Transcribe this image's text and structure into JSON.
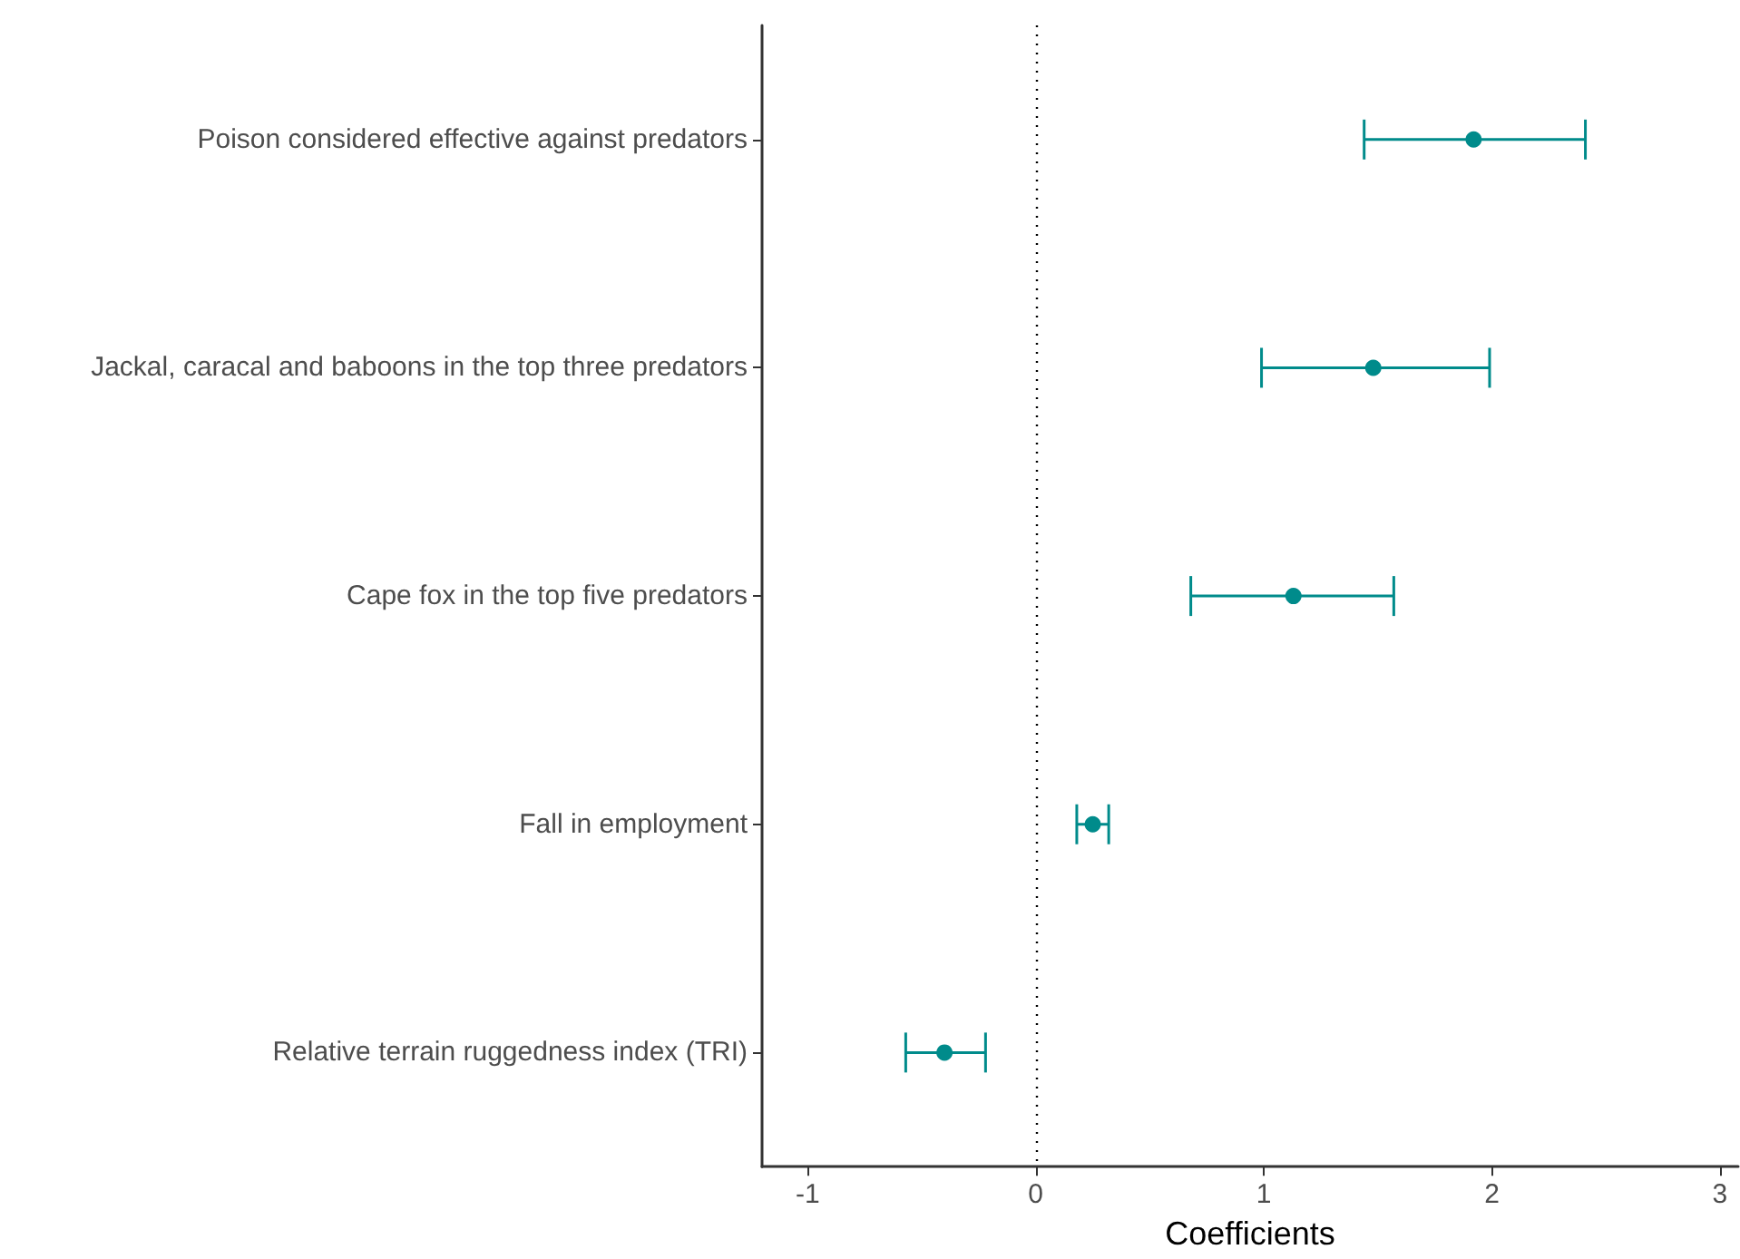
{
  "chart_data": {
    "type": "scatter",
    "orientation": "horizontal",
    "xlabel": "Coefficients",
    "categories": [
      "Poison considered effective against predators",
      "Jackal, caracal and baboons in the top three predators",
      "Cape fox in the top five predators",
      "Fall in employment",
      "Relative terrain ruggedness index (TRI)"
    ],
    "series": [
      {
        "color": "#008b8b",
        "values": [
          1.92,
          1.48,
          1.13,
          0.25,
          -0.4
        ],
        "errors": [
          [
            1.44,
            2.41
          ],
          [
            0.99,
            1.99
          ],
          [
            0.68,
            1.57
          ],
          [
            0.18,
            0.32
          ],
          [
            -0.57,
            -0.22
          ]
        ]
      }
    ],
    "xlim": [
      -1.2,
      3.08
    ],
    "xticks": [
      -1,
      0,
      1,
      2,
      3
    ],
    "ref_lines": [
      {
        "axis": "x",
        "value": 0,
        "line_style": "dotted",
        "color": "#000000"
      }
    ],
    "grid": false,
    "marker": "circle"
  }
}
